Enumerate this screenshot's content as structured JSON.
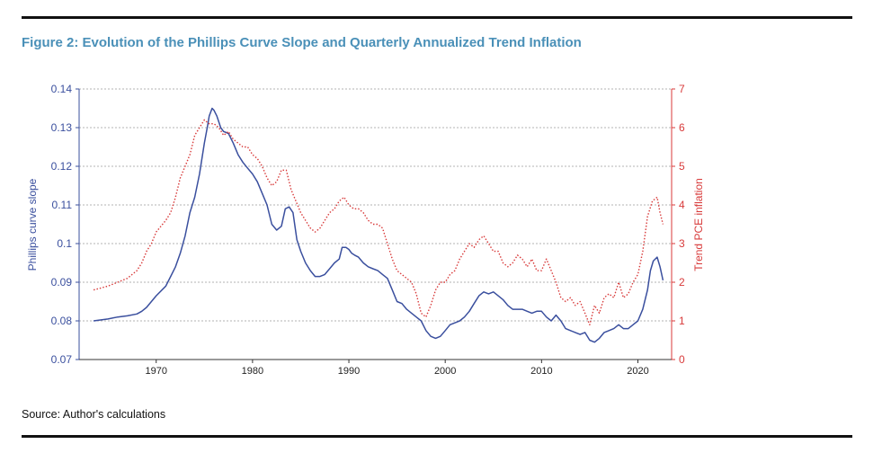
{
  "figure": {
    "title": "Figure 2: Evolution of the Phillips Curve Slope and Quarterly Annualized Trend Inflation",
    "source": "Source: Author's calculations"
  },
  "chart_data": {
    "type": "line",
    "title": "Figure 2: Evolution of the Phillips Curve Slope and Quarterly Annualized Trend Inflation",
    "xlabel": "",
    "ylabel": "Phillips curve slope",
    "y2label": "Trend PCE inflation",
    "xlim": [
      1962,
      2023.5
    ],
    "ylim": [
      0.07,
      0.14
    ],
    "y2lim": [
      0,
      7
    ],
    "x_ticks": [
      1970,
      1980,
      1990,
      2000,
      2010,
      2020
    ],
    "y_ticks": [
      0.07,
      0.08,
      0.09,
      0.1,
      0.11,
      0.12,
      0.13,
      0.14
    ],
    "y2_ticks": [
      0,
      1,
      2,
      3,
      4,
      5,
      6,
      7
    ],
    "grid": "horizontal dotted",
    "colors": {
      "slope": "#3a4f9e",
      "inflation": "#d83a3a"
    },
    "series": [
      {
        "name": "Phillips curve slope",
        "axis": "left",
        "style": "solid",
        "x": [
          1963.5,
          1965,
          1966,
          1967,
          1968,
          1968.5,
          1969,
          1969.5,
          1970,
          1971,
          1971.5,
          1972,
          1972.5,
          1973,
          1973.5,
          1974,
          1974.5,
          1975,
          1975.3,
          1975.5,
          1975.8,
          1976,
          1976.3,
          1976.7,
          1977,
          1977.5,
          1978,
          1978.5,
          1979,
          1979.5,
          1980,
          1980.5,
          1981,
          1981.5,
          1982,
          1982.5,
          1983,
          1983.4,
          1983.8,
          1984.2,
          1984.6,
          1985,
          1985.5,
          1986,
          1986.5,
          1987,
          1987.5,
          1988,
          1988.5,
          1989,
          1989.3,
          1989.7,
          1990,
          1990.3,
          1990.6,
          1991,
          1991.5,
          1992,
          1992.5,
          1993,
          1993.5,
          1994,
          1994.5,
          1995,
          1995.5,
          1996,
          1996.5,
          1997,
          1997.5,
          1998,
          1998.5,
          1999,
          1999.5,
          2000,
          2000.5,
          2001,
          2001.5,
          2002,
          2002.5,
          2003,
          2003.5,
          2004,
          2004.5,
          2005,
          2005.5,
          2006,
          2006.5,
          2007,
          2007.5,
          2008,
          2008.5,
          2009,
          2009.5,
          2010,
          2010.5,
          2011,
          2011.5,
          2012,
          2012.5,
          2013,
          2013.5,
          2014,
          2014.5,
          2015,
          2015.5,
          2016,
          2016.5,
          2017,
          2017.5,
          2018,
          2018.5,
          2019,
          2019.5,
          2020,
          2020.5,
          2021,
          2021.3,
          2021.6,
          2022,
          2022.3,
          2022.6
        ],
        "values": [
          0.08,
          0.0805,
          0.081,
          0.0813,
          0.0818,
          0.0825,
          0.0835,
          0.085,
          0.0865,
          0.089,
          0.0915,
          0.094,
          0.0975,
          0.102,
          0.108,
          0.112,
          0.118,
          0.126,
          0.13,
          0.133,
          0.135,
          0.1345,
          0.133,
          0.13,
          0.129,
          0.1285,
          0.126,
          0.123,
          0.121,
          0.1195,
          0.118,
          0.116,
          0.113,
          0.11,
          0.105,
          0.1035,
          0.1045,
          0.109,
          0.1095,
          0.108,
          0.101,
          0.098,
          0.095,
          0.093,
          0.0915,
          0.0915,
          0.092,
          0.0935,
          0.095,
          0.096,
          0.099,
          0.099,
          0.0985,
          0.0975,
          0.097,
          0.0965,
          0.095,
          0.094,
          0.0935,
          0.093,
          0.092,
          0.091,
          0.088,
          0.085,
          0.0845,
          0.083,
          0.082,
          0.081,
          0.08,
          0.0775,
          0.076,
          0.0755,
          0.076,
          0.0775,
          0.079,
          0.0795,
          0.08,
          0.081,
          0.0825,
          0.0845,
          0.0865,
          0.0875,
          0.087,
          0.0875,
          0.0865,
          0.0855,
          0.084,
          0.083,
          0.083,
          0.083,
          0.0825,
          0.082,
          0.0825,
          0.0825,
          0.081,
          0.08,
          0.0815,
          0.08,
          0.078,
          0.0775,
          0.077,
          0.0765,
          0.077,
          0.075,
          0.0745,
          0.0755,
          0.077,
          0.0775,
          0.078,
          0.079,
          0.078,
          0.078,
          0.079,
          0.08,
          0.083,
          0.088,
          0.093,
          0.0955,
          0.0965,
          0.094,
          0.0905
        ]
      },
      {
        "name": "Trend PCE inflation",
        "axis": "right",
        "style": "dotted",
        "x": [
          1963.5,
          1965,
          1966,
          1967,
          1968,
          1968.5,
          1969,
          1969.5,
          1970,
          1971,
          1971.5,
          1972,
          1972.5,
          1973,
          1973.5,
          1974,
          1974.5,
          1975,
          1975.5,
          1976,
          1976.5,
          1977,
          1977.5,
          1978,
          1978.5,
          1979,
          1979.5,
          1980,
          1980.5,
          1981,
          1981.5,
          1982,
          1982.5,
          1983,
          1983.5,
          1984,
          1984.5,
          1985,
          1985.5,
          1986,
          1986.5,
          1987,
          1987.5,
          1988,
          1988.5,
          1989,
          1989.5,
          1990,
          1990.5,
          1991,
          1991.5,
          1992,
          1992.5,
          1993,
          1993.5,
          1994,
          1994.5,
          1995,
          1995.5,
          1996,
          1996.5,
          1997,
          1997.5,
          1998,
          1998.5,
          1999,
          1999.5,
          2000,
          2000.5,
          2001,
          2001.5,
          2002,
          2002.5,
          2003,
          2003.5,
          2004,
          2004.5,
          2005,
          2005.5,
          2006,
          2006.5,
          2007,
          2007.5,
          2008,
          2008.5,
          2009,
          2009.5,
          2010,
          2010.5,
          2011,
          2011.5,
          2012,
          2012.5,
          2013,
          2013.5,
          2014,
          2014.5,
          2015,
          2015.5,
          2016,
          2016.5,
          2017,
          2017.5,
          2018,
          2018.5,
          2019,
          2019.5,
          2020,
          2020.5,
          2021,
          2021.5,
          2022,
          2022.3,
          2022.6
        ],
        "values": [
          1.8,
          1.9,
          2.0,
          2.1,
          2.3,
          2.5,
          2.8,
          3.0,
          3.3,
          3.6,
          3.8,
          4.2,
          4.7,
          5.0,
          5.3,
          5.8,
          6.0,
          6.2,
          6.1,
          6.1,
          6.0,
          5.8,
          5.9,
          5.7,
          5.6,
          5.5,
          5.5,
          5.3,
          5.2,
          5.0,
          4.7,
          4.5,
          4.6,
          4.9,
          4.9,
          4.4,
          4.1,
          3.8,
          3.6,
          3.4,
          3.3,
          3.4,
          3.6,
          3.8,
          3.9,
          4.1,
          4.2,
          4.0,
          3.9,
          3.9,
          3.8,
          3.6,
          3.5,
          3.5,
          3.4,
          3.0,
          2.6,
          2.3,
          2.2,
          2.1,
          2.0,
          1.7,
          1.2,
          1.1,
          1.4,
          1.8,
          2.0,
          2.0,
          2.2,
          2.3,
          2.6,
          2.8,
          3.0,
          2.9,
          3.1,
          3.2,
          3.0,
          2.8,
          2.8,
          2.5,
          2.4,
          2.5,
          2.7,
          2.6,
          2.4,
          2.6,
          2.3,
          2.3,
          2.6,
          2.3,
          2.0,
          1.6,
          1.5,
          1.6,
          1.4,
          1.5,
          1.2,
          0.9,
          1.4,
          1.2,
          1.6,
          1.7,
          1.6,
          2.0,
          1.6,
          1.7,
          2.0,
          2.2,
          2.8,
          3.7,
          4.1,
          4.2,
          3.8,
          3.5
        ]
      }
    ]
  }
}
